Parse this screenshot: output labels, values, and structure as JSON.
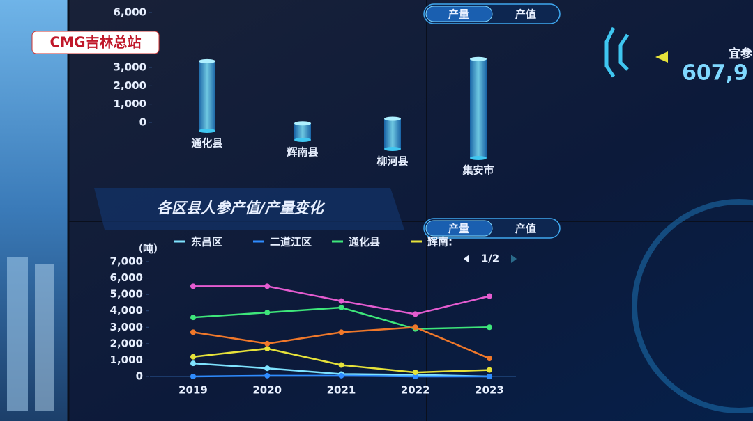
{
  "logo": "CMG吉林总站",
  "side_panel": {
    "label": "宜参",
    "value": "607,9"
  },
  "chart_data": [
    {
      "type": "bar",
      "toggle": [
        "产量",
        "产值"
      ],
      "categories": [
        "通化县",
        "辉南县",
        "柳河县",
        "集安市"
      ],
      "values": [
        3800,
        900,
        1650,
        5400
      ],
      "color": "#3fc6f0",
      "ylim": [
        0,
        6000
      ],
      "yticks": [
        {
          "value": 0,
          "label": "0"
        },
        {
          "value": 1000,
          "label": "1,000"
        },
        {
          "value": 2000,
          "label": "2,000"
        },
        {
          "value": 3000,
          "label": "3,000"
        },
        {
          "value": 6000,
          "label": "6,000"
        }
      ]
    },
    {
      "type": "line",
      "title": "各区县人参产值/产量变化",
      "toggle": [
        "产量",
        "产值"
      ],
      "y_unit": "（吨）",
      "legend_page": "1/2",
      "categories": [
        "2019",
        "2020",
        "2021",
        "2022",
        "2023"
      ],
      "series": [
        {
          "name": "东昌区",
          "color": "#7fe3ff",
          "values": [
            800,
            500,
            150,
            100,
            0
          ]
        },
        {
          "name": "二道江区",
          "color": "#2f8cff",
          "values": [
            0,
            50,
            50,
            0,
            0
          ]
        },
        {
          "name": "通化县",
          "color": "#3ee67a",
          "values": [
            3600,
            3900,
            4200,
            2900,
            3000
          ]
        },
        {
          "name": "辉南:",
          "color": "#e6e23a",
          "values": [
            1200,
            1700,
            700,
            250,
            400
          ]
        },
        {
          "color": "#e55cd0",
          "values": [
            5500,
            5500,
            4600,
            3800,
            4900
          ]
        },
        {
          "color": "#f0782a",
          "values": [
            2700,
            2000,
            2700,
            3000,
            1100
          ]
        }
      ],
      "ylim": [
        0,
        7000
      ],
      "yticks": [
        {
          "value": 0,
          "label": "0"
        },
        {
          "value": 1000,
          "label": "1,000"
        },
        {
          "value": 2000,
          "label": "2,000"
        },
        {
          "value": 3000,
          "label": "3,000"
        },
        {
          "value": 4000,
          "label": "4,000"
        },
        {
          "value": 5000,
          "label": "5,000"
        },
        {
          "value": 6000,
          "label": "6,000"
        },
        {
          "value": 7000,
          "label": "7,000"
        }
      ]
    }
  ]
}
